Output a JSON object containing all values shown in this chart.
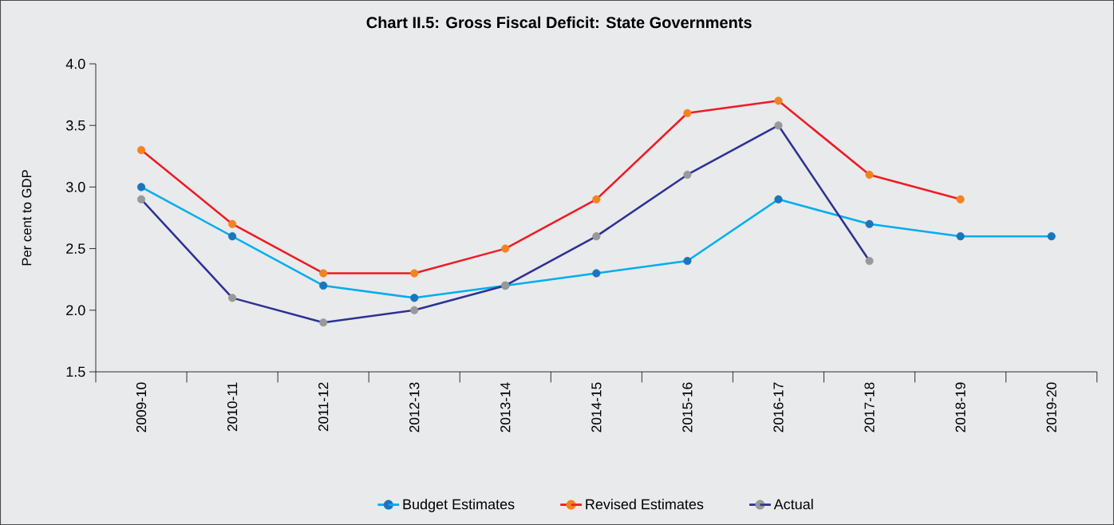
{
  "chart_data": {
    "type": "line",
    "title": "Chart II.5: Gross Fiscal Deficit: State Governments",
    "ylabel": "Per cent to GDP",
    "categories": [
      "2009-10",
      "2010-11",
      "2011-12",
      "2012-13",
      "2013-14",
      "2014-15",
      "2015-16",
      "2016-17",
      "2017-18",
      "2018-19",
      "2019-20"
    ],
    "series": [
      {
        "name": "Budget Estimates",
        "color": "#00aeef",
        "colors": [
          "#1b75bc",
          "#1b75bc",
          "#1b75bc",
          "#1b75bc",
          "#1b75bc",
          "#1b75bc",
          "#1b75bc",
          "#1b75bc",
          "#1b75bc",
          "#1b75bc",
          "#1b75bc"
        ],
        "values": [
          3.0,
          2.6,
          2.2,
          2.1,
          2.2,
          2.3,
          2.4,
          2.9,
          2.7,
          2.6,
          2.6
        ]
      },
      {
        "name": "Revised Estimates",
        "color": "#ed1c24",
        "colors": [
          "#f58220",
          "#f58220",
          "#f58220",
          "#f58220",
          "#f58220",
          "#f58220",
          "#f58220",
          "#f58220",
          "#f58220",
          "#f58220",
          null
        ],
        "values": [
          3.3,
          2.7,
          2.3,
          2.3,
          2.5,
          2.9,
          3.6,
          3.7,
          3.1,
          2.9,
          null
        ]
      },
      {
        "name": "Actual",
        "color": "#2e3192",
        "colors": [
          "#999999",
          "#999999",
          "#999999",
          "#999999",
          "#999999",
          "#999999",
          "#999999",
          "#999999",
          "#999999",
          null,
          null
        ],
        "values": [
          2.9,
          2.1,
          1.9,
          2.0,
          2.2,
          2.6,
          3.1,
          3.5,
          2.4,
          null,
          null
        ]
      }
    ],
    "ylim": [
      1.5,
      4.0
    ],
    "yticks": [
      {
        "value": 1.5,
        "label": "1.5"
      },
      {
        "value": 2.0,
        "label": "2.0"
      },
      {
        "value": 2.5,
        "label": "2.5"
      },
      {
        "value": 3.0,
        "label": "3.0"
      },
      {
        "value": 3.5,
        "label": "3.5"
      },
      {
        "value": 4.0,
        "label": "4.0"
      }
    ],
    "marker": "circle",
    "legend": "bottom"
  }
}
